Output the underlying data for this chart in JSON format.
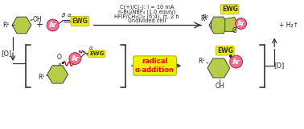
{
  "bg_color": "#ffffff",
  "green_color": "#b8cc4a",
  "pink_color": "#f07090",
  "yellow_ewg": "#eef000",
  "arrow_color": "#333333",
  "red_color": "#cc0000",
  "reaction_conditions": [
    "C(+)/C(-): I = 10 mA",
    "n-Bu₄NBF₄ (1.0 equiv)",
    "HFIP/CH₂Cl₂ (6:4), rt, 2 h",
    "Undivided cell"
  ],
  "figsize": [
    3.78,
    1.61
  ],
  "dpi": 100
}
